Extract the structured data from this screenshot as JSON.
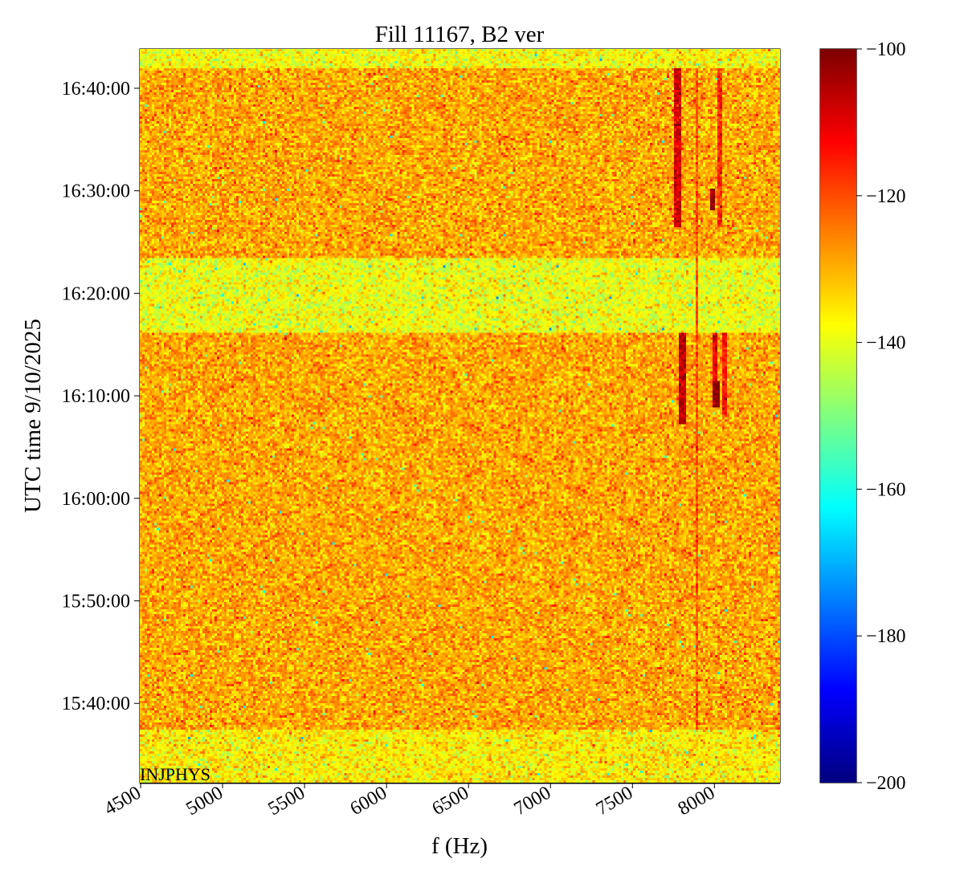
{
  "chart_data": {
    "type": "heatmap",
    "title": "Fill 11167, B2 ver",
    "xlabel": "f (Hz)",
    "ylabel": "UTC time 9/10/2025",
    "xlim": [
      4495,
      8400
    ],
    "ylim": [
      "15:32:16",
      "16:43:50"
    ],
    "xticks": [
      4500,
      5000,
      5500,
      6000,
      6500,
      7000,
      7500,
      8000
    ],
    "xtick_labels": [
      "4500",
      "5000",
      "5500",
      "6000",
      "6500",
      "7000",
      "7500",
      "8000"
    ],
    "yticks": [
      "15:40:00",
      "15:50:00",
      "16:00:00",
      "16:10:00",
      "16:20:00",
      "16:30:00",
      "16:40:00"
    ],
    "colorbar": {
      "range": [
        -200,
        -100
      ],
      "ticks": [
        -100,
        -120,
        -140,
        -160,
        -180,
        -200
      ],
      "tick_labels": [
        "−100",
        "−120",
        "−140",
        "−160",
        "−180",
        "−200"
      ],
      "colormap": "jet"
    },
    "annotation": "INJPHYS",
    "background_level": -129,
    "noise_sd": 5,
    "quiet_bands": [
      {
        "from": "16:41:57",
        "to": "16:43:50",
        "level": -138
      },
      {
        "from": "16:16:15",
        "to": "16:23:26",
        "level": -139
      },
      {
        "from": "15:32:16",
        "to": "15:37:20",
        "level": -136
      }
    ],
    "lines": [
      {
        "f": 7775,
        "width": 30,
        "from": "16:26:30",
        "to": "16:41:57",
        "level": -108
      },
      {
        "f": 7800,
        "width": 30,
        "from": "16:07:11",
        "to": "16:16:15",
        "level": -106
      },
      {
        "f": 7890,
        "width": 8,
        "from": "15:37:20",
        "to": "16:41:57",
        "level": -120
      },
      {
        "f": 8035,
        "width": 10,
        "from": "16:26:30",
        "to": "16:41:57",
        "level": -117
      },
      {
        "f": 8060,
        "width": 10,
        "from": "16:08:00",
        "to": "16:16:15",
        "level": -115
      },
      {
        "f": 7985,
        "width": 18,
        "from": "16:28:00",
        "to": "16:30:10",
        "level": -100
      },
      {
        "f": 8010,
        "width": 18,
        "from": "16:08:50",
        "to": "16:11:30",
        "level": -101
      },
      {
        "f": 8005,
        "width": 10,
        "from": "16:11:30",
        "to": "16:16:15",
        "level": -110
      }
    ]
  }
}
